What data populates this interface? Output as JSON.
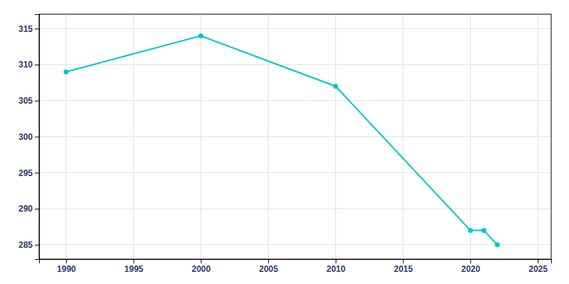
{
  "chart_data": {
    "type": "line",
    "x": [
      1990,
      2000,
      2010,
      2020,
      2021,
      2022
    ],
    "values": [
      309,
      314,
      307,
      287,
      287,
      285
    ],
    "color": "#00C5CD",
    "marker": "circle",
    "xlim": [
      1988,
      2026
    ],
    "ylim": [
      283,
      317
    ],
    "xticks": [
      1990,
      1995,
      2000,
      2005,
      2010,
      2015,
      2020,
      2025
    ],
    "yticks": [
      285,
      290,
      295,
      300,
      305,
      310,
      315
    ],
    "grid": true
  }
}
